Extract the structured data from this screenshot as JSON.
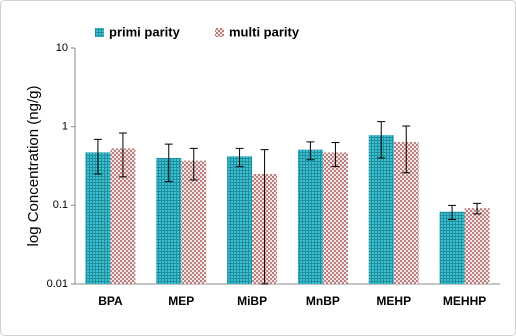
{
  "chart_data": {
    "type": "bar",
    "y_label": "log Concentration (ng/g)",
    "log_scale": true,
    "categories": [
      "BPA",
      "MEP",
      "MiBP",
      "MnBP",
      "MEHP",
      "MEHHP"
    ],
    "series": [
      {
        "name": "primi parity",
        "color": "#2aa3b2",
        "values": [
          0.47,
          0.4,
          0.42,
          0.51,
          0.78,
          0.083
        ],
        "errors": [
          0.22,
          0.2,
          0.11,
          0.13,
          0.38,
          0.017
        ]
      },
      {
        "name": "multi parity",
        "color": "#c99a9a",
        "values": [
          0.53,
          0.37,
          0.25,
          0.47,
          0.64,
          0.092
        ],
        "errors": [
          0.3,
          0.16,
          0.26,
          0.16,
          0.38,
          0.014
        ]
      }
    ],
    "ylim": [
      0.01,
      10
    ],
    "yticks": [
      0.01,
      0.1,
      1,
      10
    ],
    "legend": "top"
  }
}
